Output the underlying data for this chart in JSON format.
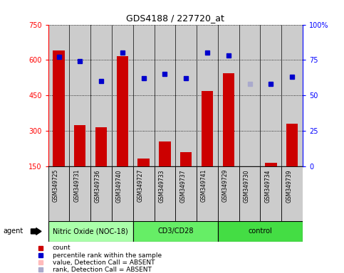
{
  "title": "GDS4188 / 227720_at",
  "samples": [
    "GSM349725",
    "GSM349731",
    "GSM349736",
    "GSM349740",
    "GSM349727",
    "GSM349733",
    "GSM349737",
    "GSM349741",
    "GSM349729",
    "GSM349730",
    "GSM349734",
    "GSM349739"
  ],
  "bar_values": [
    640,
    325,
    315,
    615,
    185,
    255,
    210,
    470,
    545,
    125,
    165,
    330
  ],
  "bar_absent": [
    false,
    false,
    false,
    false,
    false,
    false,
    false,
    false,
    false,
    true,
    false,
    false
  ],
  "percentile_values": [
    77,
    74,
    60,
    80,
    62,
    65,
    62,
    80,
    78,
    58,
    58,
    63
  ],
  "percentile_absent": [
    false,
    false,
    false,
    false,
    false,
    false,
    false,
    false,
    false,
    true,
    false,
    false
  ],
  "groups": [
    {
      "label": "Nitric Oxide (NOC-18)",
      "start": 0,
      "end": 4,
      "color": "#aaffaa"
    },
    {
      "label": "CD3/CD28",
      "start": 4,
      "end": 8,
      "color": "#66ee66"
    },
    {
      "label": "control",
      "start": 8,
      "end": 12,
      "color": "#44dd44"
    }
  ],
  "ylim_left": [
    150,
    750
  ],
  "ylim_right": [
    0,
    100
  ],
  "yticks_left": [
    150,
    300,
    450,
    600,
    750
  ],
  "yticks_right": [
    0,
    25,
    50,
    75,
    100
  ],
  "bar_color": "#cc0000",
  "bar_absent_color": "#ffbbbb",
  "dot_color": "#0000cc",
  "dot_absent_color": "#aaaacc",
  "grid_color": "#000000",
  "bg_color": "#cccccc",
  "bar_width": 0.55,
  "legend_items": [
    {
      "color": "#cc0000",
      "label": "count",
      "marker": "s"
    },
    {
      "color": "#0000cc",
      "label": "percentile rank within the sample",
      "marker": "s"
    },
    {
      "color": "#ffbbbb",
      "label": "value, Detection Call = ABSENT",
      "marker": "s"
    },
    {
      "color": "#aaaacc",
      "label": "rank, Detection Call = ABSENT",
      "marker": "s"
    }
  ]
}
